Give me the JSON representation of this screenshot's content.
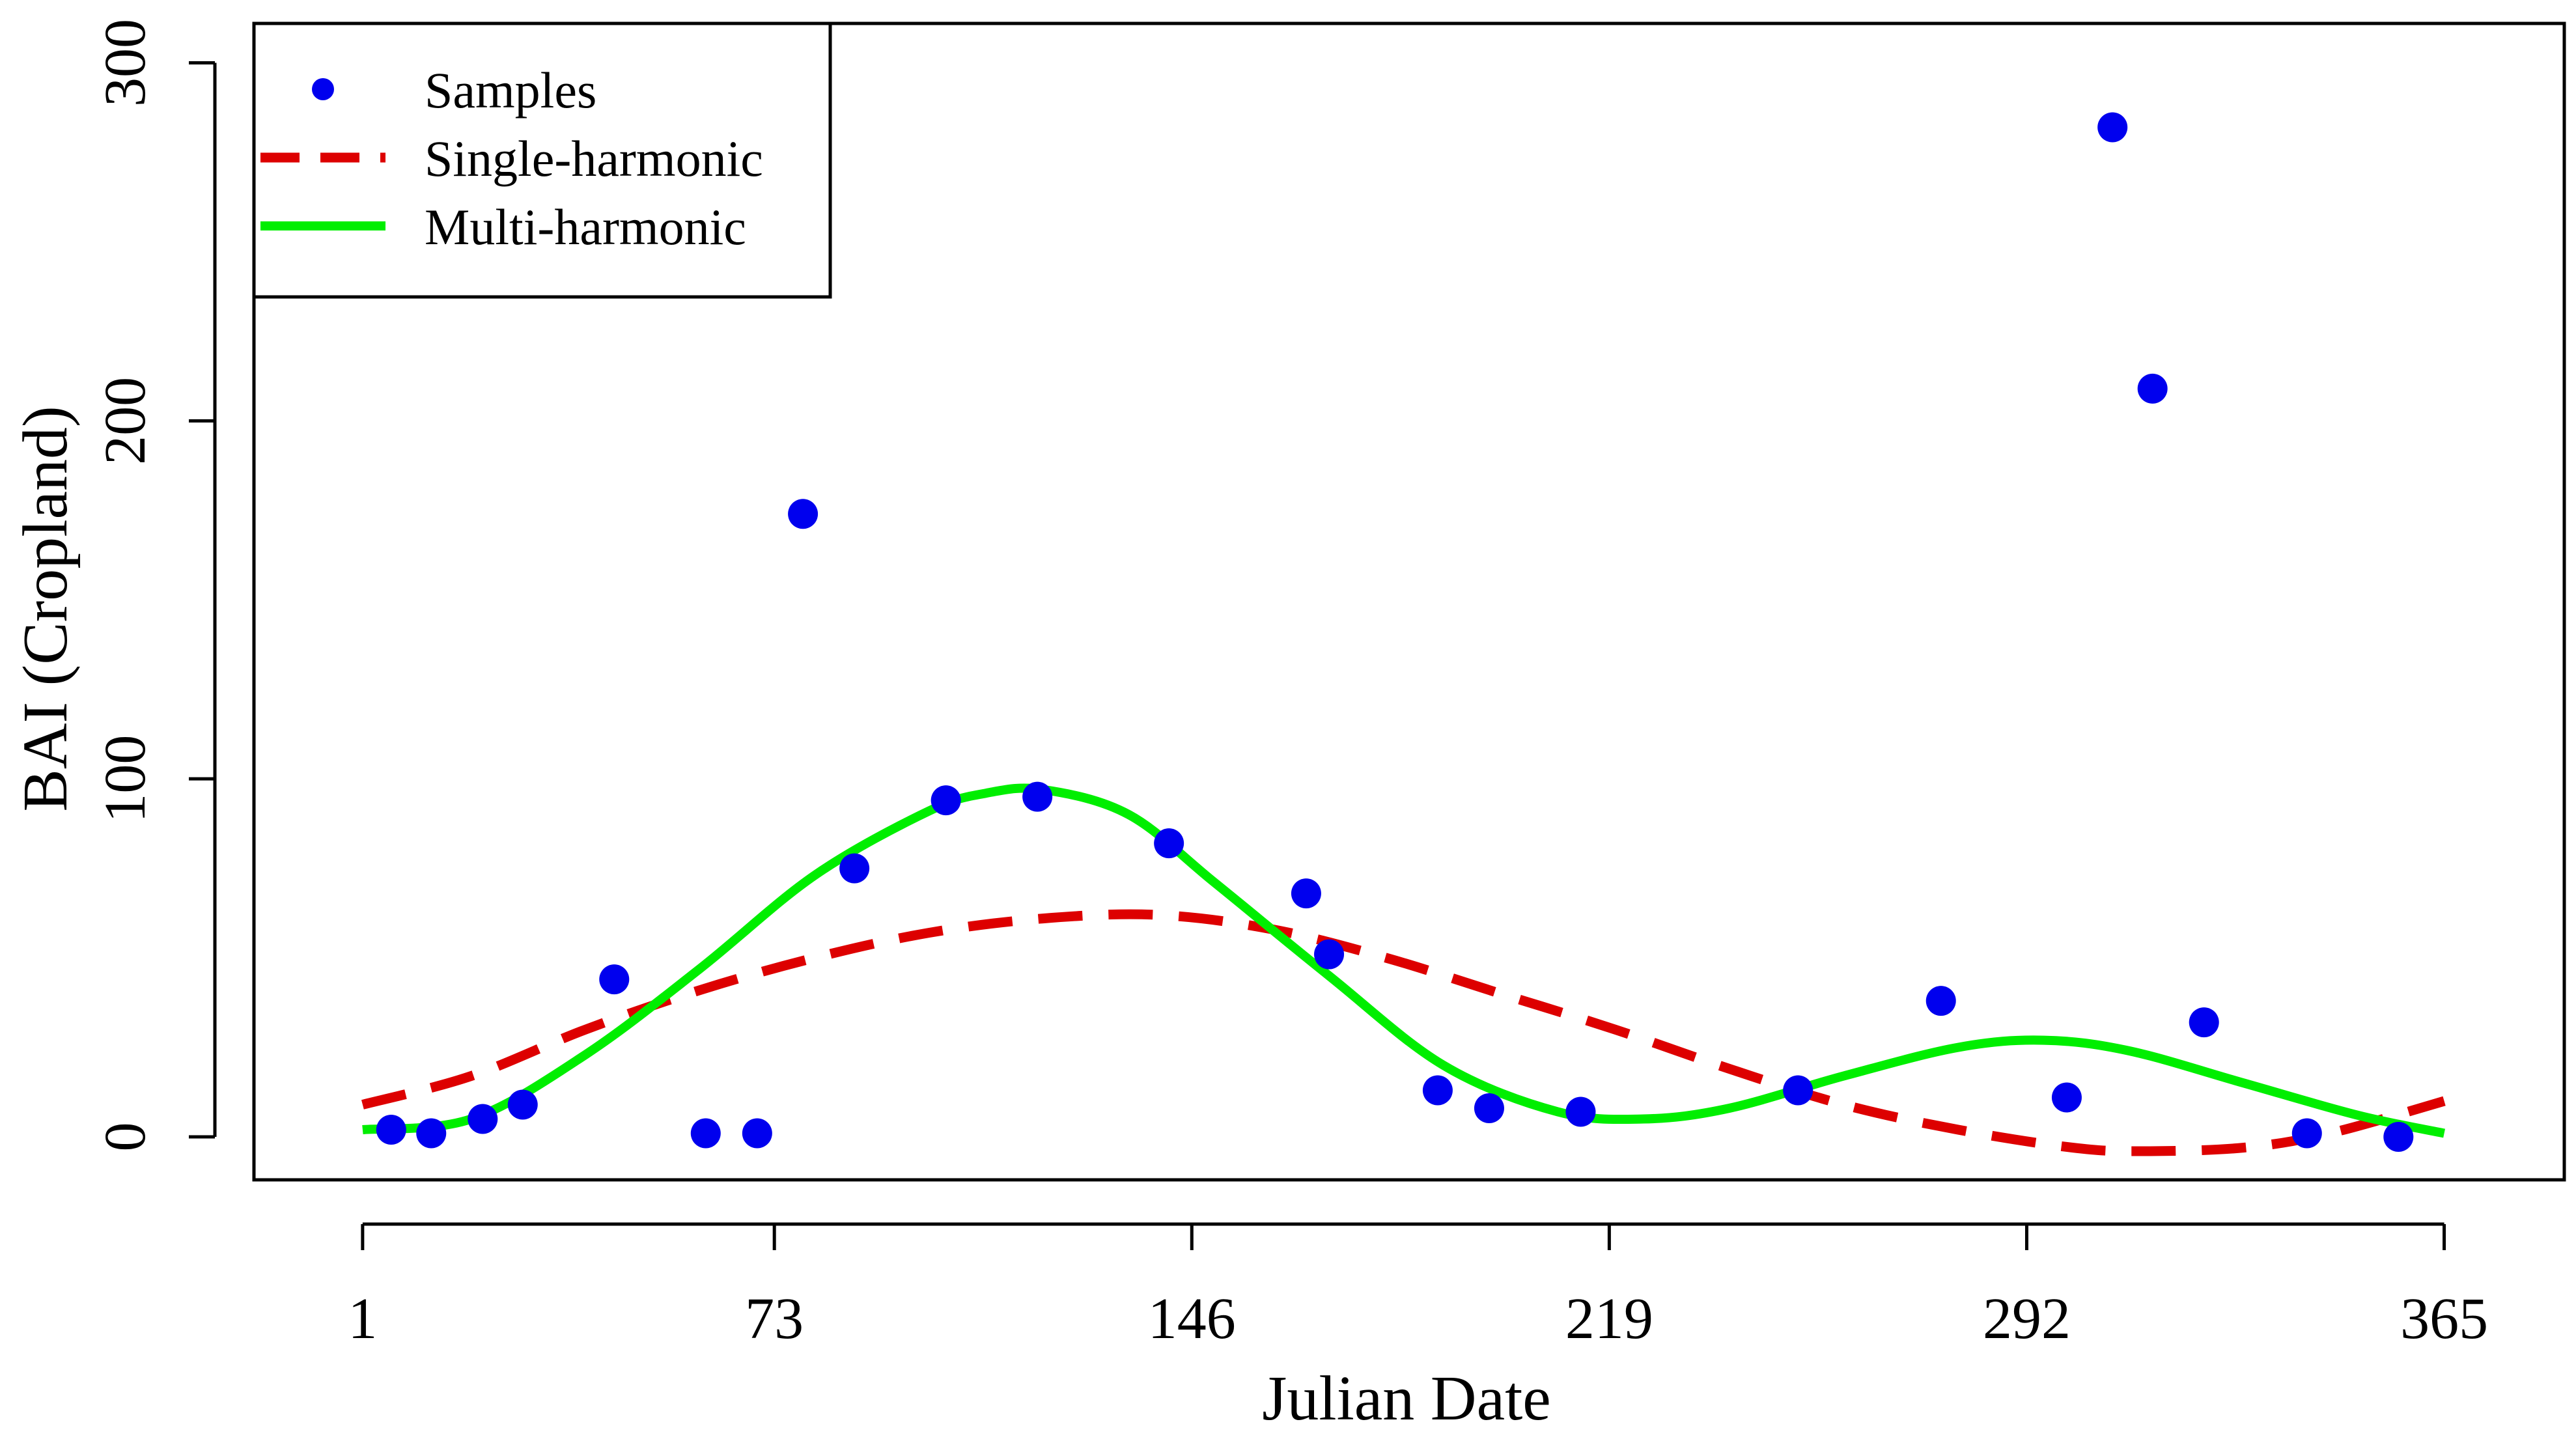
{
  "chart_data": {
    "type": "scatter",
    "title": "",
    "xlabel": "Julian Date",
    "ylabel": "BAI (Cropland)",
    "xlim": [
      -18,
      386
    ],
    "ylim": [
      -12,
      311
    ],
    "xticks": [
      1,
      73,
      146,
      219,
      292,
      365
    ],
    "xtick_labels": [
      "1",
      "73",
      "146",
      "219",
      "292",
      "365"
    ],
    "yticks": [
      0,
      100,
      200,
      300
    ],
    "ytick_labels": [
      "0",
      "100",
      "200",
      "300"
    ],
    "grid": false,
    "legend": {
      "position": "top-left",
      "entries": [
        "Samples",
        "Single-harmonic",
        "Multi-harmonic"
      ]
    },
    "series": [
      {
        "name": "Samples",
        "kind": "points",
        "color": "#0000ee",
        "points": [
          [
            6,
            2
          ],
          [
            13,
            1
          ],
          [
            22,
            5
          ],
          [
            29,
            9
          ],
          [
            45,
            44
          ],
          [
            61,
            1
          ],
          [
            70,
            1
          ],
          [
            78,
            174
          ],
          [
            87,
            75
          ],
          [
            103,
            94
          ],
          [
            119,
            95
          ],
          [
            142,
            82
          ],
          [
            166,
            68
          ],
          [
            170,
            51
          ],
          [
            189,
            13
          ],
          [
            198,
            8
          ],
          [
            214,
            7
          ],
          [
            252,
            13
          ],
          [
            277,
            38
          ],
          [
            299,
            11
          ],
          [
            307,
            282
          ],
          [
            314,
            209
          ],
          [
            323,
            32
          ],
          [
            341,
            1
          ],
          [
            357,
            0
          ]
        ]
      },
      {
        "name": "Single-harmonic",
        "kind": "line",
        "style": "dashed",
        "color": "#dd0000",
        "points": [
          [
            1,
            9
          ],
          [
            20,
            17
          ],
          [
            40,
            30
          ],
          [
            60,
            41
          ],
          [
            80,
            50
          ],
          [
            100,
            57
          ],
          [
            120,
            61
          ],
          [
            140,
            62
          ],
          [
            160,
            58
          ],
          [
            180,
            50
          ],
          [
            200,
            40
          ],
          [
            220,
            30
          ],
          [
            240,
            19
          ],
          [
            260,
            9
          ],
          [
            280,
            2
          ],
          [
            300,
            -3
          ],
          [
            312,
            -4
          ],
          [
            330,
            -3
          ],
          [
            345,
            1
          ],
          [
            365,
            10
          ]
        ]
      },
      {
        "name": "Multi-harmonic",
        "kind": "line",
        "style": "solid",
        "color": "#00ee00",
        "points": [
          [
            1,
            2
          ],
          [
            20,
            5
          ],
          [
            40,
            23
          ],
          [
            60,
            47
          ],
          [
            80,
            73
          ],
          [
            100,
            91
          ],
          [
            110,
            96
          ],
          [
            120,
            97
          ],
          [
            135,
            90
          ],
          [
            150,
            71
          ],
          [
            170,
            45
          ],
          [
            190,
            20
          ],
          [
            210,
            7
          ],
          [
            225,
            5
          ],
          [
            240,
            8
          ],
          [
            260,
            17
          ],
          [
            280,
            25
          ],
          [
            295,
            27
          ],
          [
            310,
            24
          ],
          [
            330,
            15
          ],
          [
            350,
            6
          ],
          [
            365,
            1
          ]
        ]
      }
    ]
  }
}
